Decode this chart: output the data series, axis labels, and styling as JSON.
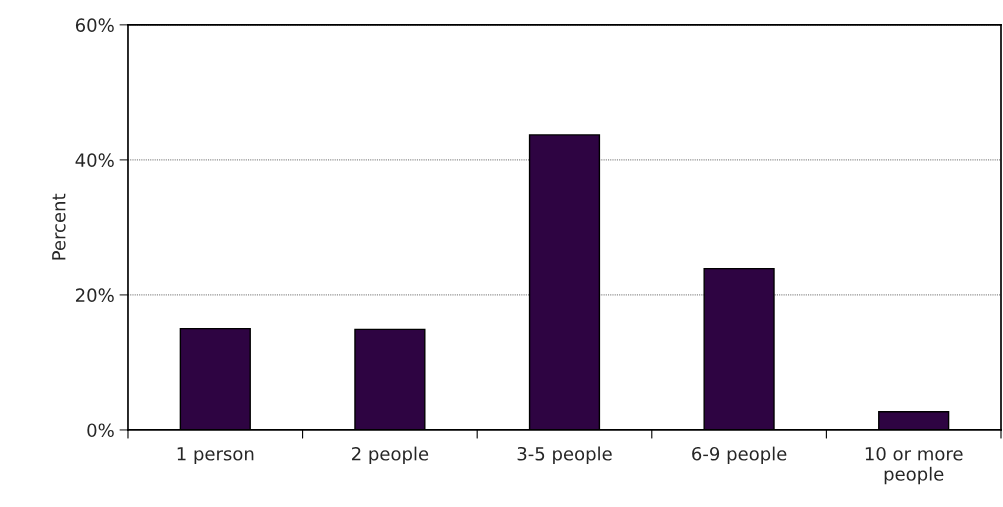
{
  "chart_data": {
    "type": "bar",
    "ylabel": "Percent",
    "categories": [
      "1 person",
      "2 people",
      "3-5 people",
      "6-9 people",
      "10 or more people"
    ],
    "values": [
      15.0,
      14.9,
      43.7,
      23.9,
      2.7
    ],
    "color": "#2e0442",
    "ylim": [
      0,
      60
    ],
    "yticks": [
      {
        "value": 0,
        "label": "0%"
      },
      {
        "value": 20,
        "label": "20%"
      },
      {
        "value": 40,
        "label": "40%"
      },
      {
        "value": 60,
        "label": "60%"
      }
    ],
    "grid": "y",
    "legend": false
  }
}
